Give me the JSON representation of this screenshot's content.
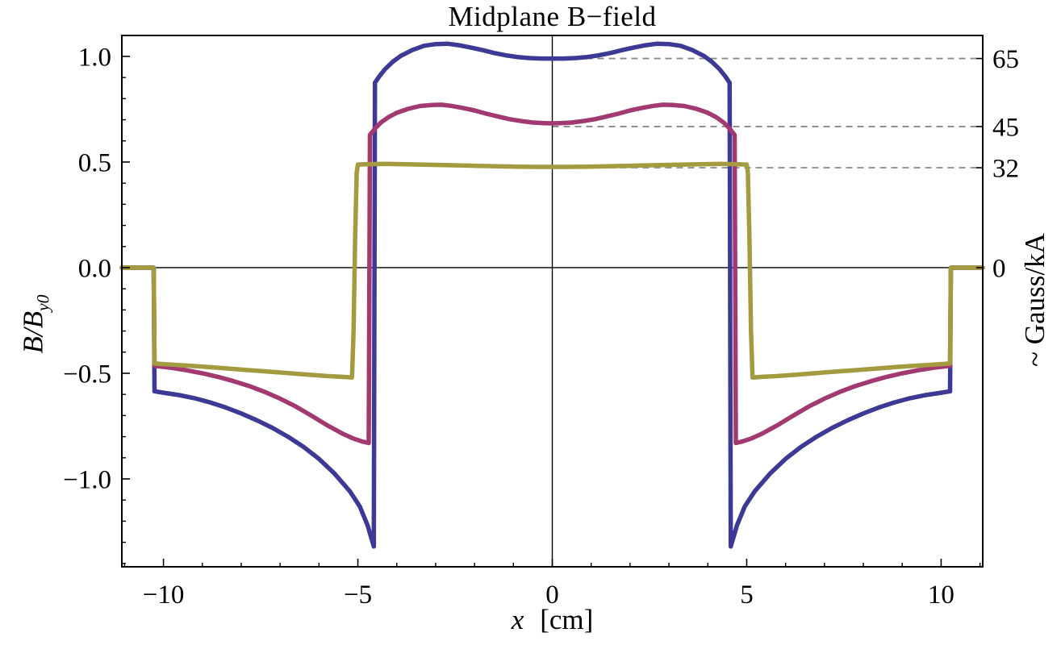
{
  "title": "Midplane B−field",
  "axes": {
    "bottom": {
      "label_var": "x",
      "label_unit": "[cm]",
      "ticks": [
        {
          "v": -10,
          "label": "−10"
        },
        {
          "v": -5,
          "label": "−5"
        },
        {
          "v": 0,
          "label": "0"
        },
        {
          "v": 5,
          "label": "5"
        },
        {
          "v": 10,
          "label": "10"
        }
      ],
      "minor_step": 1
    },
    "left": {
      "label_main": "B/B",
      "label_sub": "y0",
      "ticks": [
        {
          "v": 1.0,
          "label": "1.0"
        },
        {
          "v": 0.5,
          "label": "0.5"
        },
        {
          "v": 0.0,
          "label": "0.0"
        },
        {
          "v": -0.5,
          "label": "−0.5"
        },
        {
          "v": -1.0,
          "label": "−1.0"
        }
      ],
      "minor_step": 0.1
    },
    "right": {
      "label": "~ Gauss/kA",
      "ticks": [
        {
          "v": 0.99,
          "label": "65"
        },
        {
          "v": 0.668,
          "label": "45"
        },
        {
          "v": 0.473,
          "label": "32"
        },
        {
          "v": 0.0,
          "label": "0"
        }
      ]
    }
  },
  "colors": {
    "frame": "#000000",
    "axis_line": "#000000",
    "dashed_reference": "#8a8a8a",
    "series_blue": "#3d3a96",
    "series_magenta": "#a23a71",
    "series_olive": "#a49b40"
  },
  "chart_data": {
    "type": "line",
    "title": "Midplane B−field",
    "xlabel": "x [cm]",
    "ylabel": "B/B_y0",
    "ylabel_right": "~ Gauss/kA",
    "xlim": [
      -11.07,
      11.07
    ],
    "ylim": [
      -1.416,
      1.099
    ],
    "grid": false,
    "legend": "none",
    "reference_lines": [
      {
        "y": 0.99,
        "right_label": "65",
        "x_start": 0,
        "style": "dashed"
      },
      {
        "y": 0.668,
        "right_label": "45",
        "x_start": 0,
        "style": "dashed"
      },
      {
        "y": 0.473,
        "right_label": "32",
        "x_start": 0,
        "style": "dashed"
      }
    ],
    "series": [
      {
        "name": "curve-65-gauss-per-kA",
        "color": "#3d3a96",
        "center_value": 0.99,
        "right_axis_label": "65",
        "points": [
          [
            -11.07,
            0
          ],
          [
            -10.25,
            0
          ],
          [
            -10.23,
            -0.585
          ],
          [
            -10.0,
            -0.592
          ],
          [
            -9.6,
            -0.603
          ],
          [
            -9.2,
            -0.618
          ],
          [
            -8.8,
            -0.638
          ],
          [
            -8.4,
            -0.662
          ],
          [
            -8.0,
            -0.69
          ],
          [
            -7.6,
            -0.722
          ],
          [
            -7.2,
            -0.758
          ],
          [
            -6.8,
            -0.8
          ],
          [
            -6.4,
            -0.848
          ],
          [
            -6.0,
            -0.905
          ],
          [
            -5.6,
            -0.975
          ],
          [
            -5.2,
            -1.06
          ],
          [
            -4.95,
            -1.13
          ],
          [
            -4.75,
            -1.22
          ],
          [
            -4.59,
            -1.32
          ],
          [
            -4.56,
            0.875
          ],
          [
            -4.45,
            0.905
          ],
          [
            -4.3,
            0.94
          ],
          [
            -4.1,
            0.975
          ],
          [
            -3.9,
            1.002
          ],
          [
            -3.6,
            1.03
          ],
          [
            -3.3,
            1.05
          ],
          [
            -3.0,
            1.058
          ],
          [
            -2.7,
            1.06
          ],
          [
            -2.4,
            1.053
          ],
          [
            -2.1,
            1.042
          ],
          [
            -1.8,
            1.03
          ],
          [
            -1.5,
            1.016
          ],
          [
            -1.2,
            1.005
          ],
          [
            -0.9,
            0.997
          ],
          [
            -0.6,
            0.992
          ],
          [
            -0.3,
            0.99
          ],
          [
            0,
            0.99
          ],
          [
            0.3,
            0.99
          ],
          [
            0.6,
            0.992
          ],
          [
            0.9,
            0.997
          ],
          [
            1.2,
            1.005
          ],
          [
            1.5,
            1.016
          ],
          [
            1.8,
            1.03
          ],
          [
            2.1,
            1.042
          ],
          [
            2.4,
            1.053
          ],
          [
            2.7,
            1.06
          ],
          [
            3.0,
            1.058
          ],
          [
            3.3,
            1.05
          ],
          [
            3.6,
            1.03
          ],
          [
            3.9,
            1.002
          ],
          [
            4.1,
            0.975
          ],
          [
            4.3,
            0.94
          ],
          [
            4.45,
            0.905
          ],
          [
            4.56,
            0.875
          ],
          [
            4.59,
            -1.32
          ],
          [
            4.75,
            -1.22
          ],
          [
            4.95,
            -1.13
          ],
          [
            5.2,
            -1.06
          ],
          [
            5.6,
            -0.975
          ],
          [
            6.0,
            -0.905
          ],
          [
            6.4,
            -0.848
          ],
          [
            6.8,
            -0.8
          ],
          [
            7.2,
            -0.758
          ],
          [
            7.6,
            -0.722
          ],
          [
            8.0,
            -0.69
          ],
          [
            8.4,
            -0.662
          ],
          [
            8.8,
            -0.638
          ],
          [
            9.2,
            -0.618
          ],
          [
            9.6,
            -0.603
          ],
          [
            10.0,
            -0.592
          ],
          [
            10.23,
            -0.585
          ],
          [
            10.25,
            0
          ],
          [
            11.07,
            0
          ]
        ]
      },
      {
        "name": "curve-45-gauss-per-kA",
        "color": "#a23a71",
        "center_value": 0.683,
        "right_axis_label": "45",
        "points": [
          [
            -11.07,
            0
          ],
          [
            -10.25,
            0
          ],
          [
            -10.23,
            -0.465
          ],
          [
            -9.8,
            -0.474
          ],
          [
            -9.4,
            -0.486
          ],
          [
            -9.0,
            -0.5
          ],
          [
            -8.6,
            -0.517
          ],
          [
            -8.2,
            -0.537
          ],
          [
            -7.8,
            -0.56
          ],
          [
            -7.4,
            -0.588
          ],
          [
            -7.0,
            -0.62
          ],
          [
            -6.6,
            -0.657
          ],
          [
            -6.2,
            -0.7
          ],
          [
            -5.8,
            -0.745
          ],
          [
            -5.4,
            -0.785
          ],
          [
            -5.1,
            -0.81
          ],
          [
            -4.9,
            -0.822
          ],
          [
            -4.72,
            -0.83
          ],
          [
            -4.69,
            0.628
          ],
          [
            -4.55,
            0.66
          ],
          [
            -4.4,
            0.688
          ],
          [
            -4.2,
            0.714
          ],
          [
            -4.0,
            0.733
          ],
          [
            -3.7,
            0.752
          ],
          [
            -3.4,
            0.765
          ],
          [
            -3.1,
            0.77
          ],
          [
            -2.85,
            0.771
          ],
          [
            -2.6,
            0.766
          ],
          [
            -2.3,
            0.756
          ],
          [
            -2.0,
            0.744
          ],
          [
            -1.7,
            0.729
          ],
          [
            -1.4,
            0.716
          ],
          [
            -1.1,
            0.703
          ],
          [
            -0.8,
            0.694
          ],
          [
            -0.5,
            0.687
          ],
          [
            -0.2,
            0.684
          ],
          [
            0,
            0.683
          ],
          [
            0.2,
            0.684
          ],
          [
            0.5,
            0.687
          ],
          [
            0.8,
            0.694
          ],
          [
            1.1,
            0.703
          ],
          [
            1.4,
            0.716
          ],
          [
            1.7,
            0.729
          ],
          [
            2.0,
            0.744
          ],
          [
            2.3,
            0.756
          ],
          [
            2.6,
            0.766
          ],
          [
            2.85,
            0.771
          ],
          [
            3.1,
            0.77
          ],
          [
            3.4,
            0.765
          ],
          [
            3.7,
            0.752
          ],
          [
            4.0,
            0.733
          ],
          [
            4.2,
            0.714
          ],
          [
            4.4,
            0.688
          ],
          [
            4.55,
            0.66
          ],
          [
            4.69,
            0.628
          ],
          [
            4.72,
            -0.83
          ],
          [
            4.9,
            -0.822
          ],
          [
            5.1,
            -0.81
          ],
          [
            5.4,
            -0.785
          ],
          [
            5.8,
            -0.745
          ],
          [
            6.2,
            -0.7
          ],
          [
            6.6,
            -0.657
          ],
          [
            7.0,
            -0.62
          ],
          [
            7.4,
            -0.588
          ],
          [
            7.8,
            -0.56
          ],
          [
            8.2,
            -0.537
          ],
          [
            8.6,
            -0.517
          ],
          [
            9.0,
            -0.5
          ],
          [
            9.4,
            -0.486
          ],
          [
            9.8,
            -0.474
          ],
          [
            10.23,
            -0.465
          ],
          [
            10.25,
            0
          ],
          [
            11.07,
            0
          ]
        ]
      },
      {
        "name": "curve-32-gauss-per-kA",
        "color": "#a49b40",
        "center_value": 0.477,
        "right_axis_label": "32",
        "points": [
          [
            -11.07,
            0
          ],
          [
            -10.25,
            0
          ],
          [
            -10.23,
            -0.454
          ],
          [
            -9.8,
            -0.459
          ],
          [
            -9.3,
            -0.465
          ],
          [
            -8.8,
            -0.471
          ],
          [
            -8.3,
            -0.478
          ],
          [
            -7.8,
            -0.485
          ],
          [
            -7.3,
            -0.492
          ],
          [
            -6.8,
            -0.499
          ],
          [
            -6.3,
            -0.506
          ],
          [
            -5.8,
            -0.513
          ],
          [
            -5.4,
            -0.517
          ],
          [
            -5.15,
            -0.52
          ],
          [
            -5.11,
            -0.3
          ],
          [
            -5.07,
            0.15
          ],
          [
            -5.03,
            0.45
          ],
          [
            -5.0,
            0.488
          ],
          [
            -4.7,
            0.49
          ],
          [
            -4.3,
            0.491
          ],
          [
            -3.9,
            0.49
          ],
          [
            -3.4,
            0.488
          ],
          [
            -2.9,
            0.486
          ],
          [
            -2.4,
            0.484
          ],
          [
            -1.9,
            0.482
          ],
          [
            -1.4,
            0.48
          ],
          [
            -0.9,
            0.478
          ],
          [
            -0.4,
            0.477
          ],
          [
            0,
            0.477
          ],
          [
            0.4,
            0.477
          ],
          [
            0.9,
            0.478
          ],
          [
            1.4,
            0.48
          ],
          [
            1.9,
            0.482
          ],
          [
            2.4,
            0.484
          ],
          [
            2.9,
            0.486
          ],
          [
            3.4,
            0.488
          ],
          [
            3.9,
            0.49
          ],
          [
            4.3,
            0.491
          ],
          [
            4.7,
            0.49
          ],
          [
            5.0,
            0.488
          ],
          [
            5.03,
            0.45
          ],
          [
            5.07,
            0.15
          ],
          [
            5.11,
            -0.3
          ],
          [
            5.15,
            -0.52
          ],
          [
            5.4,
            -0.517
          ],
          [
            5.8,
            -0.513
          ],
          [
            6.3,
            -0.506
          ],
          [
            6.8,
            -0.499
          ],
          [
            7.3,
            -0.492
          ],
          [
            7.8,
            -0.485
          ],
          [
            8.3,
            -0.478
          ],
          [
            8.8,
            -0.471
          ],
          [
            9.3,
            -0.465
          ],
          [
            9.8,
            -0.459
          ],
          [
            10.23,
            -0.454
          ],
          [
            10.25,
            0
          ],
          [
            11.07,
            0
          ]
        ]
      }
    ]
  }
}
